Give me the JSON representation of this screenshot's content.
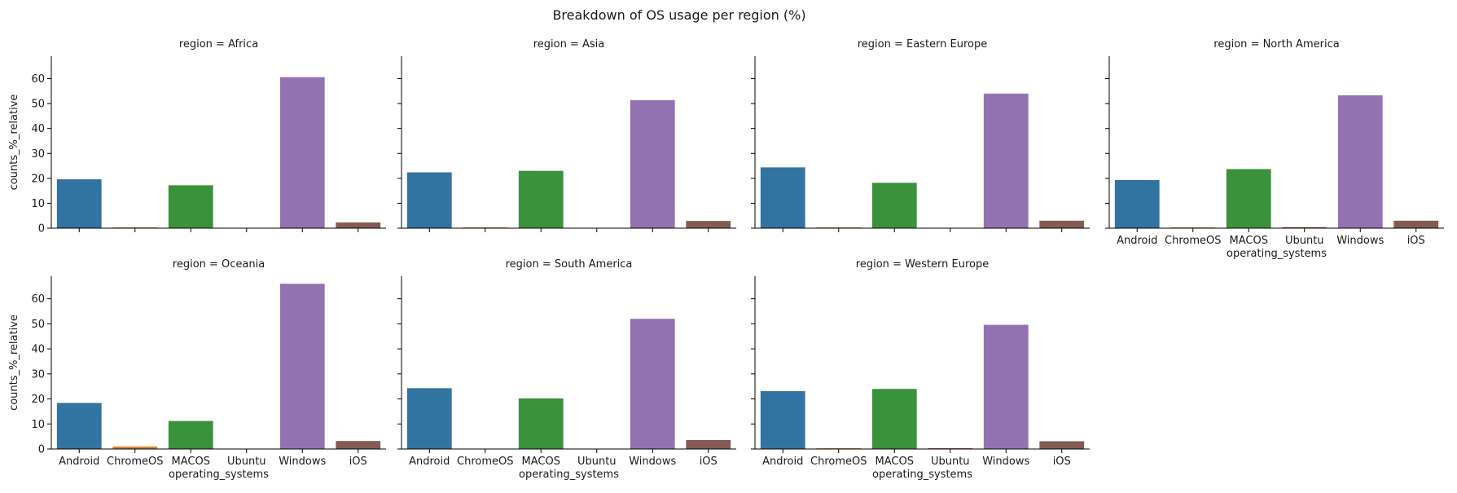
{
  "chart_data": {
    "type": "bar",
    "title": "Breakdown of OS usage per region (%)",
    "xlabel": "operating_systems",
    "ylabel": "counts_%_relative",
    "categories": [
      "Android",
      "ChromeOS",
      "MACOS",
      "Ubuntu",
      "Windows",
      "iOS"
    ],
    "ylim": [
      0,
      69
    ],
    "yticks": [
      0,
      10,
      20,
      30,
      40,
      50,
      60
    ],
    "colors": [
      "#3274a1",
      "#e1812c",
      "#3a923a",
      "#c03d3e",
      "#9372b2",
      "#845b53"
    ],
    "facet_prefix": "region = ",
    "facets": [
      {
        "name": "Africa",
        "values": [
          19.6,
          0.3,
          17.2,
          0.0,
          60.6,
          2.3
        ]
      },
      {
        "name": "Asia",
        "values": [
          22.4,
          0.3,
          23.0,
          0.0,
          51.4,
          2.9
        ]
      },
      {
        "name": "Eastern Europe",
        "values": [
          24.4,
          0.3,
          18.2,
          0.1,
          54.0,
          3.0
        ]
      },
      {
        "name": "North America",
        "values": [
          19.3,
          0.3,
          23.7,
          0.4,
          53.3,
          3.0
        ]
      },
      {
        "name": "Oceania",
        "values": [
          18.4,
          1.0,
          11.2,
          0.0,
          66.0,
          3.2
        ]
      },
      {
        "name": "South America",
        "values": [
          24.3,
          0.1,
          20.2,
          0.0,
          52.0,
          3.6
        ]
      },
      {
        "name": "Western Europe",
        "values": [
          23.1,
          0.3,
          24.0,
          0.3,
          49.6,
          3.1
        ]
      }
    ]
  }
}
